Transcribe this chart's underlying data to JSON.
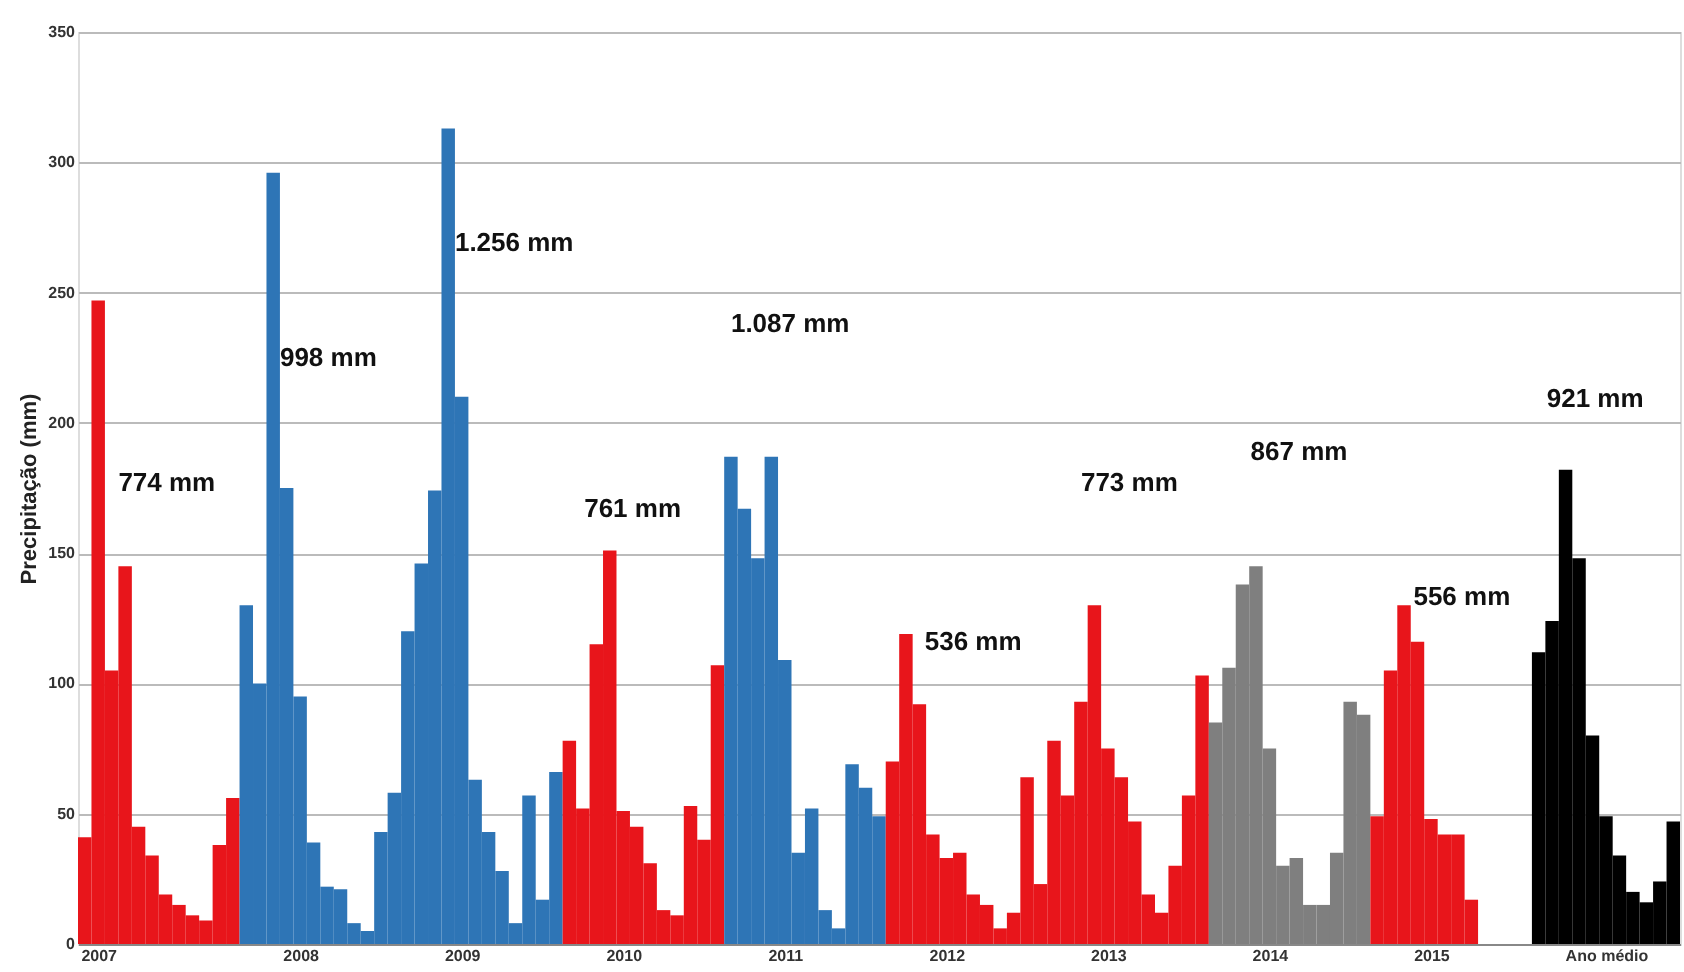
{
  "chart_data": {
    "type": "bar",
    "ylabel": "Precipitação (mm)",
    "categories": [
      null,
      "2007",
      null,
      null,
      null,
      null,
      null,
      null,
      null,
      null,
      null,
      null,
      null,
      null,
      null,
      null,
      "2008",
      null,
      null,
      null,
      null,
      null,
      null,
      null,
      null,
      null,
      null,
      null,
      "2009",
      null,
      null,
      null,
      null,
      null,
      null,
      null,
      null,
      null,
      null,
      null,
      "2010",
      null,
      null,
      null,
      null,
      null,
      null,
      null,
      null,
      null,
      null,
      null,
      "2011",
      null,
      null,
      null,
      null,
      null,
      null,
      null,
      null,
      null,
      null,
      null,
      "2012",
      null,
      null,
      null,
      null,
      null,
      null,
      null,
      null,
      null,
      null,
      null,
      "2013",
      null,
      null,
      null,
      null,
      null,
      null,
      null,
      null,
      null,
      null,
      null,
      "2014",
      null,
      null,
      null,
      null,
      null,
      null,
      null,
      null,
      null,
      null,
      null,
      "2015",
      null,
      null,
      null,
      null,
      null,
      null,
      null,
      null,
      null,
      null,
      null,
      null,
      "Ano médio",
      null,
      null,
      null,
      null,
      null
    ],
    "values": [
      41,
      247,
      105,
      145,
      45,
      34,
      19,
      15,
      11,
      9,
      38,
      56,
      130,
      100,
      296,
      175,
      95,
      39,
      22,
      21,
      8,
      5,
      43,
      58,
      120,
      146,
      174,
      313,
      210,
      63,
      43,
      28,
      8,
      57,
      17,
      66,
      78,
      52,
      115,
      151,
      51,
      45,
      31,
      13,
      11,
      53,
      40,
      107,
      187,
      167,
      148,
      187,
      109,
      35,
      52,
      13,
      6,
      69,
      60,
      49,
      70,
      119,
      92,
      42,
      33,
      35,
      19,
      15,
      6,
      12,
      64,
      23,
      78,
      57,
      93,
      130,
      75,
      64,
      47,
      19,
      12,
      30,
      57,
      103,
      85,
      106,
      138,
      145,
      75,
      30,
      33,
      15,
      15,
      35,
      93,
      88,
      49,
      105,
      130,
      116,
      48,
      42,
      42,
      17,
      null,
      null,
      null,
      null,
      112,
      124,
      182,
      148,
      80,
      49,
      34,
      20,
      16,
      24,
      47
    ],
    "colors": [
      "#e8151b",
      "#e8151b",
      "#e8151b",
      "#e8151b",
      "#e8151b",
      "#e8151b",
      "#e8151b",
      "#e8151b",
      "#e8151b",
      "#e8151b",
      "#e8151b",
      "#e8151b",
      "#2e75b6",
      "#2e75b6",
      "#2e75b6",
      "#2e75b6",
      "#2e75b6",
      "#2e75b6",
      "#2e75b6",
      "#2e75b6",
      "#2e75b6",
      "#2e75b6",
      "#2e75b6",
      "#2e75b6",
      "#2e75b6",
      "#2e75b6",
      "#2e75b6",
      "#2e75b6",
      "#2e75b6",
      "#2e75b6",
      "#2e75b6",
      "#2e75b6",
      "#2e75b6",
      "#2e75b6",
      "#2e75b6",
      "#2e75b6",
      "#e8151b",
      "#e8151b",
      "#e8151b",
      "#e8151b",
      "#e8151b",
      "#e8151b",
      "#e8151b",
      "#e8151b",
      "#e8151b",
      "#e8151b",
      "#e8151b",
      "#e8151b",
      "#2e75b6",
      "#2e75b6",
      "#2e75b6",
      "#2e75b6",
      "#2e75b6",
      "#2e75b6",
      "#2e75b6",
      "#2e75b6",
      "#2e75b6",
      "#2e75b6",
      "#2e75b6",
      "#2e75b6",
      "#e8151b",
      "#e8151b",
      "#e8151b",
      "#e8151b",
      "#e8151b",
      "#e8151b",
      "#e8151b",
      "#e8151b",
      "#e8151b",
      "#e8151b",
      "#e8151b",
      "#e8151b",
      "#e8151b",
      "#e8151b",
      "#e8151b",
      "#e8151b",
      "#e8151b",
      "#e8151b",
      "#e8151b",
      "#e8151b",
      "#e8151b",
      "#e8151b",
      "#e8151b",
      "#e8151b",
      "#7f7f7f",
      "#7f7f7f",
      "#7f7f7f",
      "#7f7f7f",
      "#7f7f7f",
      "#7f7f7f",
      "#7f7f7f",
      "#7f7f7f",
      "#7f7f7f",
      "#7f7f7f",
      "#7f7f7f",
      "#7f7f7f",
      "#e8151b",
      "#e8151b",
      "#e8151b",
      "#e8151b",
      "#e8151b",
      "#e8151b",
      "#e8151b",
      "#e8151b",
      "#e8151b",
      "#e8151b",
      "#e8151b",
      "#e8151b",
      "#000000",
      "#000000",
      "#000000",
      "#000000",
      "#000000",
      "#000000",
      "#000000",
      "#000000",
      "#000000",
      "#000000",
      "#000000"
    ],
    "ylim": [
      0,
      350
    ],
    "yticks": [
      0,
      50,
      100,
      150,
      200,
      250,
      300,
      350
    ],
    "grid": "y",
    "annotations": [
      "774 mm",
      "998 mm",
      "1.256 mm",
      "761 mm",
      "1.087 mm",
      "536 mm",
      "773 mm",
      "867 mm",
      "556 mm",
      "921 mm"
    ]
  }
}
